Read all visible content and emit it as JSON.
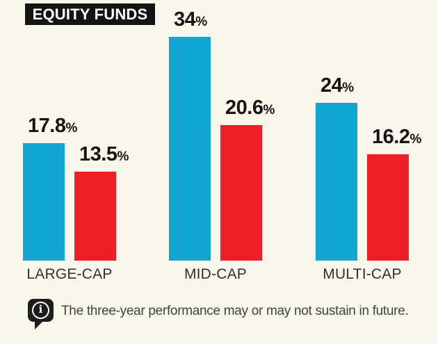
{
  "title": "EQUITY FUNDS",
  "footer": {
    "icon": "info-speech-bubble-icon",
    "note": "The three-year performance may or may not sustain in future."
  },
  "colors": {
    "background": "#f9f7eb",
    "title_bg": "#141414",
    "title_text": "#ffffff",
    "bar_blue": "#11a6d2",
    "bar_red": "#ee1f27",
    "value_text": "#141414",
    "category_text": "#2f2f2f",
    "note_text": "#3e4347"
  },
  "chart_data": {
    "type": "bar",
    "title": "EQUITY FUNDS",
    "categories": [
      "LARGE-CAP",
      "MID-CAP",
      "MULTI-CAP"
    ],
    "series": [
      {
        "name": "blue",
        "color": "#11a6d2",
        "values": [
          17.8,
          34,
          24
        ]
      },
      {
        "name": "red",
        "color": "#ee1f27",
        "values": [
          13.5,
          20.6,
          16.2
        ]
      }
    ],
    "unit": "%",
    "ylim": [
      0,
      36
    ],
    "grid": false,
    "legend": "none",
    "data_labels": true,
    "note": "The three-year performance may or may not sustain in future."
  }
}
